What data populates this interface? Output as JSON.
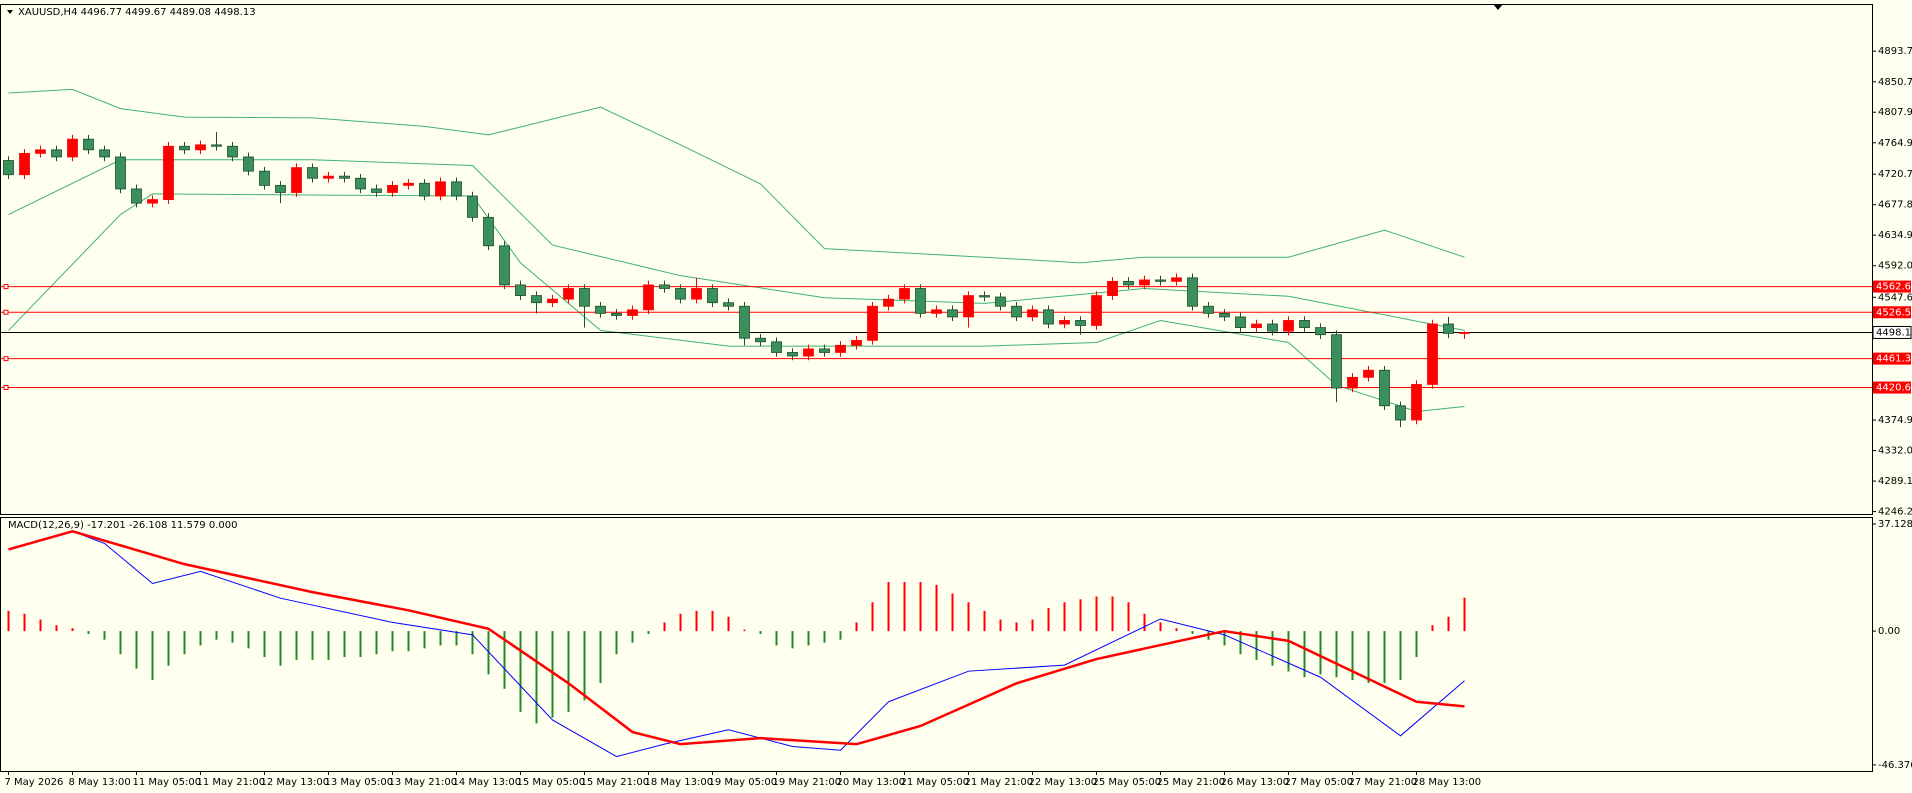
{
  "chart_data": {
    "type": "candlestick",
    "header": "XAUUSD,H4  4496.77 4499.67 4489.08 4498.13",
    "macd_label": "MACD(12,26,9) -17.201 -26.108 11.579 0.000",
    "up_color": "#ff0000",
    "down_color": "#3a8f5a",
    "band_color": "#3cb371",
    "categories": [
      "7 May 2026",
      null,
      null,
      null,
      "8 May 13:00",
      null,
      null,
      null,
      "11 May 05:00",
      null,
      null,
      null,
      "11 May 21:00",
      null,
      null,
      null,
      "12 May 13:00",
      null,
      null,
      null,
      "13 May 05:00",
      null,
      null,
      null,
      "13 May 21:00",
      null,
      null,
      null,
      "14 May 13:00",
      null,
      null,
      null,
      "15 May 05:00",
      null,
      null,
      null,
      "15 May 21:00",
      null,
      null,
      null,
      "18 May 13:00",
      null,
      null,
      null,
      "19 May 05:00",
      null,
      null,
      null,
      "19 May 21:00",
      null,
      null,
      null,
      "20 May 13:00",
      null,
      null,
      null,
      "21 May 05:00",
      null,
      null,
      null,
      "21 May 21:00",
      null,
      null,
      null,
      "22 May 13:00",
      null,
      null,
      null,
      "25 May 05:00",
      null,
      null,
      null,
      "25 May 21:00",
      null,
      null,
      null,
      "26 May 13:00",
      null,
      null,
      null,
      "27 May 05:00",
      null,
      null,
      null,
      "27 May 21:00",
      null,
      null,
      null,
      "28 May 13:00",
      null,
      null,
      null
    ],
    "open": [
      4740,
      4720,
      4750,
      4755,
      4745,
      4770,
      4755,
      4745,
      4700,
      4680,
      4685,
      4760,
      4755,
      4762,
      4760,
      4745,
      4725,
      4705,
      4695,
      4730,
      4715,
      4718,
      4715,
      4700,
      4695,
      4705,
      4708,
      4690,
      4710,
      4690,
      4660,
      4620,
      4565,
      4550,
      4540,
      4545,
      4560,
      4535,
      4525,
      4522,
      4530,
      4565,
      4560,
      4545,
      4560,
      4540,
      4535,
      4490,
      4485,
      4470,
      4465,
      4475,
      4470,
      4480,
      4487,
      4535,
      4545,
      4560,
      4525,
      4530,
      4520,
      4550,
      4548,
      4535,
      4520,
      4530,
      4510,
      4515,
      4508,
      4550,
      4570,
      4565,
      4572,
      4570,
      4575,
      4535,
      4525,
      4520,
      4505,
      4510,
      4500,
      4515,
      4505,
      4495,
      4420,
      4435,
      4445,
      4395,
      4375,
      4425,
      4510,
      4496.77
    ],
    "high": [
      4746,
      4756,
      4761,
      4761,
      4776,
      4776,
      4761,
      4751,
      4706,
      4691,
      4766,
      4766,
      4768,
      4780,
      4766,
      4751,
      4731,
      4711,
      4736,
      4736,
      4724,
      4724,
      4721,
      4706,
      4711,
      4714,
      4714,
      4716,
      4716,
      4696,
      4666,
      4626,
      4571,
      4556,
      4551,
      4566,
      4566,
      4541,
      4531,
      4536,
      4571,
      4571,
      4566,
      4575,
      4566,
      4546,
      4541,
      4496,
      4491,
      4476,
      4481,
      4481,
      4486,
      4493,
      4541,
      4551,
      4566,
      4566,
      4536,
      4536,
      4556,
      4556,
      4554,
      4541,
      4536,
      4536,
      4521,
      4521,
      4556,
      4576,
      4576,
      4578,
      4578,
      4581,
      4581,
      4541,
      4531,
      4526,
      4516,
      4516,
      4521,
      4521,
      4511,
      4501,
      4441,
      4451,
      4451,
      4401,
      4431,
      4516,
      4520,
      4499.67
    ],
    "low": [
      4714,
      4714,
      4744,
      4739,
      4739,
      4749,
      4739,
      4694,
      4674,
      4674,
      4679,
      4749,
      4749,
      4754,
      4739,
      4719,
      4699,
      4680,
      4689,
      4709,
      4709,
      4709,
      4694,
      4689,
      4689,
      4699,
      4684,
      4684,
      4684,
      4654,
      4614,
      4559,
      4544,
      4525,
      4534,
      4539,
      4505,
      4519,
      4516,
      4516,
      4524,
      4554,
      4539,
      4539,
      4534,
      4529,
      4480,
      4479,
      4464,
      4459,
      4459,
      4464,
      4464,
      4474,
      4481,
      4529,
      4539,
      4519,
      4519,
      4514,
      4505,
      4542,
      4529,
      4514,
      4514,
      4504,
      4504,
      4495,
      4502,
      4544,
      4559,
      4559,
      4564,
      4564,
      4529,
      4519,
      4514,
      4499,
      4499,
      4494,
      4494,
      4499,
      4489,
      4400,
      4414,
      4429,
      4389,
      4365,
      4369,
      4419,
      4490,
      4489.08
    ],
    "close": [
      4720,
      4750,
      4755,
      4745,
      4770,
      4755,
      4745,
      4700,
      4680,
      4685,
      4760,
      4755,
      4762,
      4760,
      4745,
      4725,
      4705,
      4695,
      4730,
      4715,
      4718,
      4715,
      4700,
      4695,
      4705,
      4708,
      4690,
      4710,
      4690,
      4660,
      4620,
      4565,
      4550,
      4540,
      4545,
      4560,
      4535,
      4525,
      4522,
      4530,
      4565,
      4560,
      4545,
      4560,
      4540,
      4535,
      4490,
      4485,
      4470,
      4465,
      4475,
      4470,
      4480,
      4487,
      4535,
      4545,
      4560,
      4525,
      4530,
      4520,
      4550,
      4548,
      4535,
      4520,
      4530,
      4510,
      4515,
      4508,
      4550,
      4570,
      4565,
      4572,
      4570,
      4575,
      4535,
      4525,
      4520,
      4505,
      4510,
      4500,
      4515,
      4505,
      4495,
      4420,
      4435,
      4445,
      4395,
      4375,
      4425,
      4510,
      4496.77,
      4498.13
    ],
    "bands": {
      "upper": {
        "x": [
          0,
          4,
          7,
          11,
          19,
          26,
          30,
          37,
          42,
          47,
          51,
          61,
          67,
          71,
          80,
          86,
          91
        ],
        "values": [
          4835,
          4840,
          4813,
          4801,
          4800,
          4788,
          4776,
          4815,
          4762,
          4707,
          4616,
          4604,
          4596,
          4604,
          4604,
          4642,
          4604
        ]
      },
      "middle": {
        "x": [
          0,
          7,
          19,
          29,
          34,
          42,
          51,
          61,
          71,
          80,
          91
        ],
        "values": [
          4664,
          4741,
          4741,
          4733,
          4621,
          4578,
          4547,
          4539,
          4560,
          4549,
          4501
        ]
      },
      "lower": {
        "x": [
          0,
          7,
          9,
          29,
          32,
          37,
          45,
          61,
          68,
          72,
          80,
          83,
          88,
          91
        ],
        "values": [
          4501,
          4664,
          4693,
          4690,
          4596,
          4501,
          4479,
          4479,
          4484,
          4515,
          4484,
          4424,
          4387,
          4394
        ]
      }
    },
    "levels": [
      {
        "value": 4562.68,
        "color": "#ff0000"
      },
      {
        "value": 4526.55,
        "color": "#ff0000"
      },
      {
        "value": 4461.35,
        "color": "#ff0000"
      },
      {
        "value": 4420.65,
        "color": "#ff0000"
      }
    ],
    "current_price": 4498.13,
    "ylim": [
      4242.8,
      4958.7
    ],
    "yticks": [
      {
        "value": 4893.7,
        "label": "4893.70"
      },
      {
        "value": 4850.7,
        "label": "4850.70"
      },
      {
        "value": 4807.9,
        "label": "4807.90"
      },
      {
        "value": 4764.9,
        "label": "4764.90"
      },
      {
        "value": 4720.7,
        "label": "4720.70"
      },
      {
        "value": 4677.8,
        "label": "4677.80"
      },
      {
        "value": 4634.9,
        "label": "4634.90"
      },
      {
        "value": 4592.0,
        "label": "4592.00"
      },
      {
        "value": 4547.6,
        "label": "4547.60"
      },
      {
        "value": 4374.9,
        "label": "4374.90"
      },
      {
        "value": 4332.0,
        "label": "4332.00"
      },
      {
        "value": 4289.1,
        "label": "4289.10"
      },
      {
        "value": 4246.2,
        "label": "4246.20"
      }
    ],
    "histogram": [
      7,
      6,
      4,
      2,
      1,
      -1,
      -3,
      -8,
      -13,
      -17,
      -12,
      -8,
      -5,
      -3,
      -4,
      -6,
      -9,
      -12,
      -10,
      -10,
      -10,
      -9,
      -9,
      -8,
      -7,
      -7,
      -6,
      -5,
      -5,
      -8,
      -15,
      -20,
      -28,
      -32,
      -30,
      -28,
      -24,
      -18,
      -8,
      -4,
      -1,
      3,
      6,
      7,
      7,
      5,
      0.5,
      -1,
      -5,
      -6,
      -5,
      -4,
      -3,
      3,
      10,
      17,
      17,
      17,
      16,
      13,
      10,
      7,
      4,
      3,
      4,
      8,
      10,
      11,
      12,
      12,
      10,
      6,
      3,
      1,
      -1,
      -3,
      -5,
      -8,
      -10,
      -12,
      -14,
      -16,
      -15,
      -16,
      -17,
      -18,
      -18,
      -17,
      -9,
      2,
      5,
      11.579
    ],
    "macd_line": {
      "color": "#0000ff",
      "x": [
        0,
        4,
        6,
        9,
        12,
        17,
        24,
        29,
        34,
        38,
        41,
        45,
        49,
        52,
        55,
        60,
        66,
        72,
        76,
        82,
        87,
        91
      ],
      "values": [
        28.3,
        34.6,
        30.4,
        16.5,
        20.7,
        11.4,
        3,
        -1.3,
        -30.8,
        -43.5,
        -39.2,
        -34.2,
        -40,
        -41.3,
        -24.5,
        -13.9,
        -11.8,
        4.2,
        -1.3,
        -16,
        -36.3,
        -17.201
      ]
    },
    "signal_line": {
      "color": "#ff0000",
      "x": [
        0,
        4,
        11,
        19,
        25,
        30,
        35,
        39,
        42,
        47,
        53,
        57,
        63,
        68,
        76,
        80,
        88,
        91
      ],
      "values": [
        28.3,
        34.6,
        23.2,
        13.5,
        7.2,
        0.8,
        -18.1,
        -35,
        -39.2,
        -37.1,
        -39.2,
        -32.9,
        -18.1,
        -9.7,
        0,
        -3.4,
        -24.5,
        -26.108
      ]
    },
    "y2lim": [
      -48.5,
      39.2
    ],
    "y2ticks": [
      37.128,
      {
        "value": 0,
        "label": "0.00"
      },
      -46.376
    ]
  }
}
